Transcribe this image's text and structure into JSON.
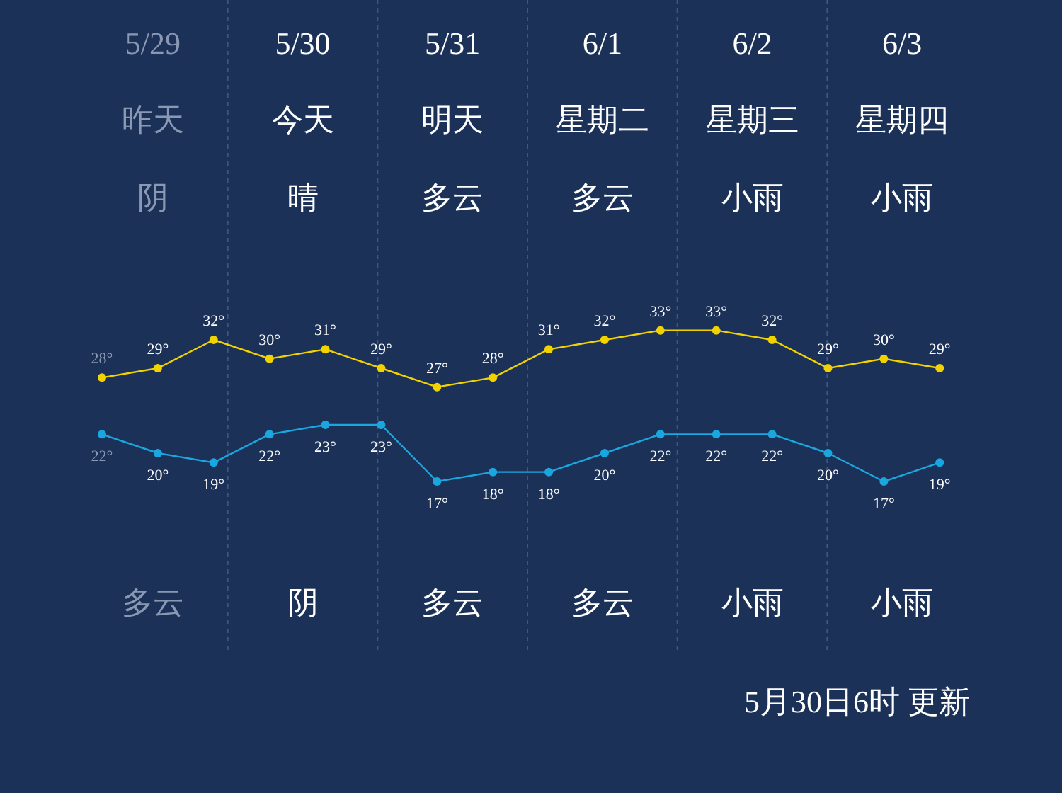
{
  "chart_data": {
    "type": "line",
    "categories": [
      null,
      null,
      null,
      null,
      null,
      null,
      null,
      null,
      null,
      null,
      null,
      null,
      null,
      null,
      null,
      null
    ],
    "series": [
      {
        "color": "#f2d300",
        "values": [
          28,
          29,
          32,
          30,
          31,
          29,
          27,
          28,
          31,
          32,
          33,
          33,
          32,
          29,
          30,
          29
        ],
        "value_labels": [
          "28°",
          "29°",
          "32°",
          "30°",
          "31°",
          "29°",
          "27°",
          "28°",
          "31°",
          "32°",
          "33°",
          "33°",
          "32°",
          "29°",
          "30°",
          "29°"
        ]
      },
      {
        "color": "#1aa7e0",
        "values": [
          22,
          20,
          19,
          22,
          23,
          23,
          17,
          18,
          18,
          20,
          22,
          22,
          22,
          20,
          17,
          19
        ],
        "value_labels": [
          "22°",
          "20°",
          "19°",
          "22°",
          "23°",
          "23°",
          "17°",
          "18°",
          "18°",
          "20°",
          "22°",
          "22°",
          "22°",
          "20°",
          "17°",
          "19°"
        ]
      }
    ],
    "marker": "circle",
    "line_style": "solid",
    "annotations": [
      "5/29",
      "昨天",
      "阴",
      "多云",
      "5/30",
      "今天",
      "晴",
      "阴",
      "5/31",
      "明天",
      "多云",
      "多云",
      "6/1",
      "星期二",
      "多云",
      "多云",
      "6/2",
      "星期三",
      "小雨",
      "小雨",
      "6/3",
      "星期四",
      "小雨",
      "小雨",
      "5月30日6时 更新"
    ]
  }
}
